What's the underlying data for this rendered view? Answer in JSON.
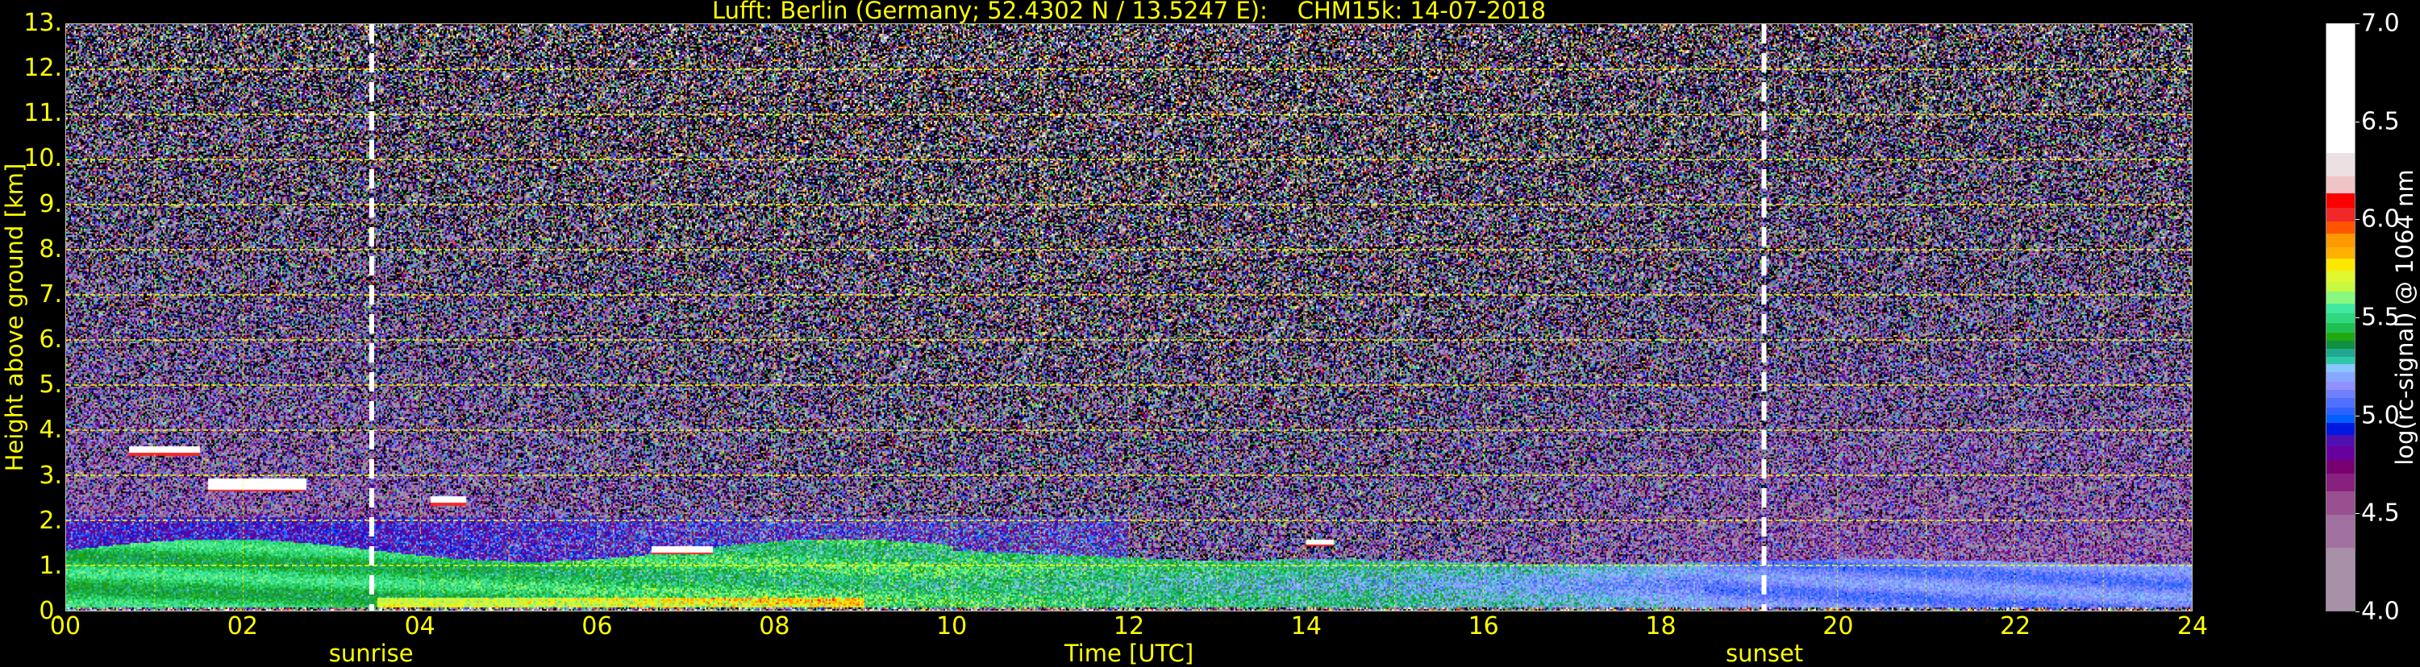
{
  "chart_data": {
    "type": "heatmap",
    "title": "Lufft: Berlin (Germany; 52.4302 N / 13.5247 E):    CHM15k: 14-07-2018",
    "xlabel": "Time [UTC]",
    "ylabel": "Height above ground [km]",
    "xlim": [
      0,
      24
    ],
    "ylim": [
      0,
      13
    ],
    "x_tick_labels": [
      "00",
      "02",
      "04",
      "06",
      "08",
      "10",
      "12",
      "14",
      "16",
      "18",
      "20",
      "22",
      "24"
    ],
    "x_tick_values": [
      0,
      2,
      4,
      6,
      8,
      10,
      12,
      14,
      16,
      18,
      20,
      22,
      24
    ],
    "y_tick_labels": [
      "0.",
      "1.",
      "2.",
      "3.",
      "4.",
      "5.",
      "6.",
      "7.",
      "8.",
      "9.",
      "10.",
      "11.",
      "12.",
      "13."
    ],
    "y_tick_values": [
      0,
      1,
      2,
      3,
      4,
      5,
      6,
      7,
      8,
      9,
      10,
      11,
      12,
      13
    ],
    "grid": true,
    "grid_color": "#ffff00",
    "markers": [
      {
        "label": "sunrise",
        "x": 3.45,
        "color": "#ffffff"
      },
      {
        "label": "sunset",
        "x": 19.17,
        "color": "#ffffff"
      }
    ],
    "colorbar": {
      "label": "log(rc-signal) @ 1064 nm",
      "range": [
        4.0,
        7.0
      ],
      "tick_labels": [
        "4.0",
        "4.5",
        "5.0",
        "5.5",
        "6.0",
        "6.5",
        "7.0"
      ],
      "tick_values": [
        4.0,
        4.5,
        5.0,
        5.5,
        6.0,
        6.5,
        7.0
      ],
      "bands": [
        {
          "from": 4.0,
          "to": 4.32,
          "color": "#a890a8"
        },
        {
          "from": 4.32,
          "to": 4.49,
          "color": "#a070a0"
        },
        {
          "from": 4.49,
          "to": 4.61,
          "color": "#985090"
        },
        {
          "from": 4.61,
          "to": 4.7,
          "color": "#882080"
        },
        {
          "from": 4.7,
          "to": 4.77,
          "color": "#780070"
        },
        {
          "from": 4.77,
          "to": 4.84,
          "color": "#6800a0"
        },
        {
          "from": 4.84,
          "to": 4.9,
          "color": "#5010b0"
        },
        {
          "from": 4.9,
          "to": 4.96,
          "color": "#0018e0"
        },
        {
          "from": 4.96,
          "to": 5.0,
          "color": "#0060ff"
        },
        {
          "from": 5.0,
          "to": 5.04,
          "color": "#3060ff"
        },
        {
          "from": 5.04,
          "to": 5.09,
          "color": "#5070ff"
        },
        {
          "from": 5.09,
          "to": 5.13,
          "color": "#7080ff"
        },
        {
          "from": 5.13,
          "to": 5.17,
          "color": "#9090ff"
        },
        {
          "from": 5.17,
          "to": 5.22,
          "color": "#88a8ff"
        },
        {
          "from": 5.22,
          "to": 5.26,
          "color": "#88c8ff"
        },
        {
          "from": 5.26,
          "to": 5.3,
          "color": "#30c8a8"
        },
        {
          "from": 5.3,
          "to": 5.34,
          "color": "#20a890"
        },
        {
          "from": 5.34,
          "to": 5.38,
          "color": "#109040"
        },
        {
          "from": 5.38,
          "to": 5.42,
          "color": "#20a810"
        },
        {
          "from": 5.42,
          "to": 5.47,
          "color": "#20c050"
        },
        {
          "from": 5.47,
          "to": 5.52,
          "color": "#30d880"
        },
        {
          "from": 5.52,
          "to": 5.57,
          "color": "#40e8a0"
        },
        {
          "from": 5.57,
          "to": 5.63,
          "color": "#88f880"
        },
        {
          "from": 5.63,
          "to": 5.68,
          "color": "#c8f840"
        },
        {
          "from": 5.68,
          "to": 5.74,
          "color": "#e0f830"
        },
        {
          "from": 5.74,
          "to": 5.8,
          "color": "#ffe800"
        },
        {
          "from": 5.8,
          "to": 5.86,
          "color": "#ffb000"
        },
        {
          "from": 5.86,
          "to": 5.93,
          "color": "#ff9900"
        },
        {
          "from": 5.93,
          "to": 5.99,
          "color": "#ff5500"
        },
        {
          "from": 5.99,
          "to": 6.06,
          "color": "#f02828"
        },
        {
          "from": 6.06,
          "to": 6.135,
          "color": "#ff0000"
        },
        {
          "from": 6.135,
          "to": 6.22,
          "color": "#f0c4c6"
        },
        {
          "from": 6.22,
          "to": 6.34,
          "color": "#ece0e2"
        },
        {
          "from": 6.34,
          "to": 7.0,
          "color": "#ffffff"
        }
      ]
    }
  }
}
